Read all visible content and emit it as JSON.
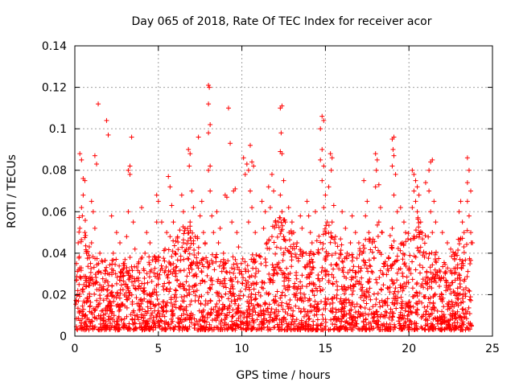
{
  "chart_data": {
    "type": "scatter",
    "title": "Day 065 of 2018, Rate Of TEC Index for receiver acor",
    "xlabel": "GPS time / hours",
    "ylabel": "ROTI / TECUs",
    "xlim": [
      0,
      25
    ],
    "ylim": [
      0,
      0.14
    ],
    "grid": true,
    "marker": "+",
    "series_color": "#ff0000",
    "x_ticks": [
      {
        "value": 0,
        "label": "0"
      },
      {
        "value": 5,
        "label": "5"
      },
      {
        "value": 10,
        "label": "10"
      },
      {
        "value": 15,
        "label": "15"
      },
      {
        "value": 20,
        "label": "20"
      },
      {
        "value": 25,
        "label": "25"
      }
    ],
    "y_ticks": [
      {
        "value": 0,
        "label": "0"
      },
      {
        "value": 0.02,
        "label": "0.02"
      },
      {
        "value": 0.04,
        "label": "0.04"
      },
      {
        "value": 0.06,
        "label": "0.06"
      },
      {
        "value": 0.08,
        "label": "0.08"
      },
      {
        "value": 0.1,
        "label": "0.1"
      },
      {
        "value": 0.12,
        "label": "0.12"
      },
      {
        "value": 0.14,
        "label": "0.14"
      }
    ],
    "series": [
      {
        "name": "ROTI",
        "points": [
          [
            0.3,
            0.088
          ],
          [
            0.4,
            0.085
          ],
          [
            0.5,
            0.076
          ],
          [
            0.6,
            0.075
          ],
          [
            0.5,
            0.068
          ],
          [
            0.4,
            0.062
          ],
          [
            0.45,
            0.058
          ],
          [
            0.3,
            0.052
          ],
          [
            0.6,
            0.05
          ],
          [
            0.2,
            0.045
          ],
          [
            0.7,
            0.04
          ],
          [
            0.1,
            0.035
          ],
          [
            1.0,
            0.065
          ],
          [
            1.2,
            0.087
          ],
          [
            1.3,
            0.083
          ],
          [
            1.1,
            0.06
          ],
          [
            1.2,
            0.052
          ],
          [
            1.4,
            0.112
          ],
          [
            1.0,
            0.045
          ],
          [
            1.5,
            0.04
          ],
          [
            1.9,
            0.104
          ],
          [
            2.0,
            0.097
          ],
          [
            2.2,
            0.058
          ],
          [
            2.5,
            0.05
          ],
          [
            2.7,
            0.045
          ],
          [
            2.3,
            0.04
          ],
          [
            2.9,
            0.035
          ],
          [
            3.2,
            0.08
          ],
          [
            3.3,
            0.078
          ],
          [
            3.4,
            0.096
          ],
          [
            3.3,
            0.082
          ],
          [
            3.2,
            0.06
          ],
          [
            3.5,
            0.055
          ],
          [
            3.1,
            0.048
          ],
          [
            3.6,
            0.042
          ],
          [
            3.8,
            0.035
          ],
          [
            4.0,
            0.062
          ],
          [
            4.3,
            0.05
          ],
          [
            4.5,
            0.045
          ],
          [
            4.2,
            0.04
          ],
          [
            4.8,
            0.038
          ],
          [
            4.9,
            0.055
          ],
          [
            4.9,
            0.068
          ],
          [
            5.0,
            0.065
          ],
          [
            5.2,
            0.055
          ],
          [
            5.5,
            0.05
          ],
          [
            5.4,
            0.042
          ],
          [
            5.6,
            0.077
          ],
          [
            5.7,
            0.072
          ],
          [
            5.8,
            0.063
          ],
          [
            5.9,
            0.055
          ],
          [
            5.7,
            0.048
          ],
          [
            6.0,
            0.04
          ],
          [
            6.4,
            0.068
          ],
          [
            6.5,
            0.06
          ],
          [
            6.6,
            0.052
          ],
          [
            6.5,
            0.045
          ],
          [
            6.8,
            0.042
          ],
          [
            6.8,
            0.09
          ],
          [
            6.9,
            0.088
          ],
          [
            6.85,
            0.082
          ],
          [
            7.0,
            0.07
          ],
          [
            7.1,
            0.062
          ],
          [
            6.9,
            0.055
          ],
          [
            7.2,
            0.048
          ],
          [
            7.4,
            0.096
          ],
          [
            7.6,
            0.065
          ],
          [
            7.5,
            0.058
          ],
          [
            7.7,
            0.05
          ],
          [
            7.8,
            0.045
          ],
          [
            8.0,
            0.121
          ],
          [
            8.05,
            0.12
          ],
          [
            8.0,
            0.112
          ],
          [
            8.1,
            0.102
          ],
          [
            8.0,
            0.098
          ],
          [
            8.1,
            0.082
          ],
          [
            8.0,
            0.08
          ],
          [
            8.1,
            0.07
          ],
          [
            8.2,
            0.058
          ],
          [
            8.3,
            0.05
          ],
          [
            8.5,
            0.06
          ],
          [
            8.7,
            0.052
          ],
          [
            8.6,
            0.045
          ],
          [
            8.9,
            0.04
          ],
          [
            9.0,
            0.068
          ],
          [
            9.1,
            0.067
          ],
          [
            9.2,
            0.11
          ],
          [
            9.3,
            0.093
          ],
          [
            9.5,
            0.07
          ],
          [
            9.6,
            0.071
          ],
          [
            9.4,
            0.055
          ],
          [
            9.7,
            0.05
          ],
          [
            9.8,
            0.043
          ],
          [
            10.1,
            0.086
          ],
          [
            10.3,
            0.083
          ],
          [
            10.4,
            0.08
          ],
          [
            10.2,
            0.078
          ],
          [
            10.5,
            0.092
          ],
          [
            10.6,
            0.084
          ],
          [
            10.7,
            0.082
          ],
          [
            10.5,
            0.07
          ],
          [
            10.6,
            0.062
          ],
          [
            10.4,
            0.055
          ],
          [
            10.8,
            0.05
          ],
          [
            11.2,
            0.065
          ],
          [
            11.4,
            0.06
          ],
          [
            11.3,
            0.052
          ],
          [
            11.5,
            0.045
          ],
          [
            11.6,
            0.072
          ],
          [
            11.8,
            0.078
          ],
          [
            11.9,
            0.07
          ],
          [
            11.7,
            0.062
          ],
          [
            12.0,
            0.055
          ],
          [
            11.8,
            0.048
          ],
          [
            12.3,
            0.11
          ],
          [
            12.4,
            0.111
          ],
          [
            12.35,
            0.098
          ],
          [
            12.3,
            0.089
          ],
          [
            12.4,
            0.088
          ],
          [
            12.5,
            0.075
          ],
          [
            12.3,
            0.068
          ],
          [
            12.4,
            0.06
          ],
          [
            12.6,
            0.055
          ],
          [
            12.5,
            0.048
          ],
          [
            12.8,
            0.062
          ],
          [
            13.0,
            0.055
          ],
          [
            13.1,
            0.05
          ],
          [
            13.3,
            0.045
          ],
          [
            13.5,
            0.058
          ],
          [
            13.6,
            0.052
          ],
          [
            13.9,
            0.065
          ],
          [
            14.0,
            0.058
          ],
          [
            14.1,
            0.05
          ],
          [
            14.2,
            0.045
          ],
          [
            14.4,
            0.06
          ],
          [
            14.7,
            0.1
          ],
          [
            14.8,
            0.106
          ],
          [
            14.9,
            0.104
          ],
          [
            14.8,
            0.09
          ],
          [
            14.7,
            0.085
          ],
          [
            14.9,
            0.082
          ],
          [
            14.8,
            0.075
          ],
          [
            15.0,
            0.068
          ],
          [
            14.9,
            0.062
          ],
          [
            15.1,
            0.055
          ],
          [
            15.3,
            0.088
          ],
          [
            15.4,
            0.086
          ],
          [
            15.35,
            0.08
          ],
          [
            15.2,
            0.072
          ],
          [
            15.5,
            0.063
          ],
          [
            15.4,
            0.055
          ],
          [
            15.6,
            0.048
          ],
          [
            16.0,
            0.06
          ],
          [
            16.2,
            0.052
          ],
          [
            16.5,
            0.045
          ],
          [
            16.3,
            0.04
          ],
          [
            16.6,
            0.058
          ],
          [
            16.8,
            0.05
          ],
          [
            17.0,
            0.045
          ],
          [
            17.2,
            0.04
          ],
          [
            17.3,
            0.075
          ],
          [
            17.5,
            0.065
          ],
          [
            17.4,
            0.058
          ],
          [
            17.6,
            0.05
          ],
          [
            17.8,
            0.045
          ],
          [
            18.0,
            0.088
          ],
          [
            18.1,
            0.085
          ],
          [
            18.05,
            0.08
          ],
          [
            18.2,
            0.073
          ],
          [
            18.0,
            0.072
          ],
          [
            18.3,
            0.062
          ],
          [
            18.2,
            0.055
          ],
          [
            18.4,
            0.05
          ],
          [
            19.0,
            0.095
          ],
          [
            19.1,
            0.096
          ],
          [
            19.05,
            0.09
          ],
          [
            19.1,
            0.087
          ],
          [
            19.0,
            0.082
          ],
          [
            19.2,
            0.078
          ],
          [
            19.1,
            0.068
          ],
          [
            19.3,
            0.06
          ],
          [
            19.0,
            0.052
          ],
          [
            19.5,
            0.062
          ],
          [
            19.7,
            0.055
          ],
          [
            19.8,
            0.05
          ],
          [
            19.6,
            0.045
          ],
          [
            20.2,
            0.08
          ],
          [
            20.3,
            0.078
          ],
          [
            20.4,
            0.075
          ],
          [
            20.5,
            0.072
          ],
          [
            20.3,
            0.07
          ],
          [
            20.6,
            0.068
          ],
          [
            20.4,
            0.065
          ],
          [
            20.2,
            0.062
          ],
          [
            20.5,
            0.06
          ],
          [
            20.7,
            0.055
          ],
          [
            20.6,
            0.05
          ],
          [
            21.0,
            0.074
          ],
          [
            21.2,
            0.08
          ],
          [
            21.3,
            0.084
          ],
          [
            21.4,
            0.085
          ],
          [
            21.2,
            0.07
          ],
          [
            21.5,
            0.065
          ],
          [
            21.3,
            0.06
          ],
          [
            21.6,
            0.055
          ],
          [
            21.4,
            0.05
          ],
          [
            22.0,
            0.05
          ],
          [
            22.3,
            0.045
          ],
          [
            22.5,
            0.042
          ],
          [
            22.8,
            0.04
          ],
          [
            23.0,
            0.06
          ],
          [
            23.1,
            0.065
          ],
          [
            23.2,
            0.055
          ],
          [
            23.3,
            0.05
          ],
          [
            23.5,
            0.086
          ],
          [
            23.6,
            0.08
          ],
          [
            23.5,
            0.074
          ],
          [
            23.7,
            0.07
          ],
          [
            23.5,
            0.065
          ],
          [
            23.6,
            0.058
          ],
          [
            23.7,
            0.05
          ],
          [
            23.8,
            0.045
          ]
        ]
      }
    ]
  }
}
